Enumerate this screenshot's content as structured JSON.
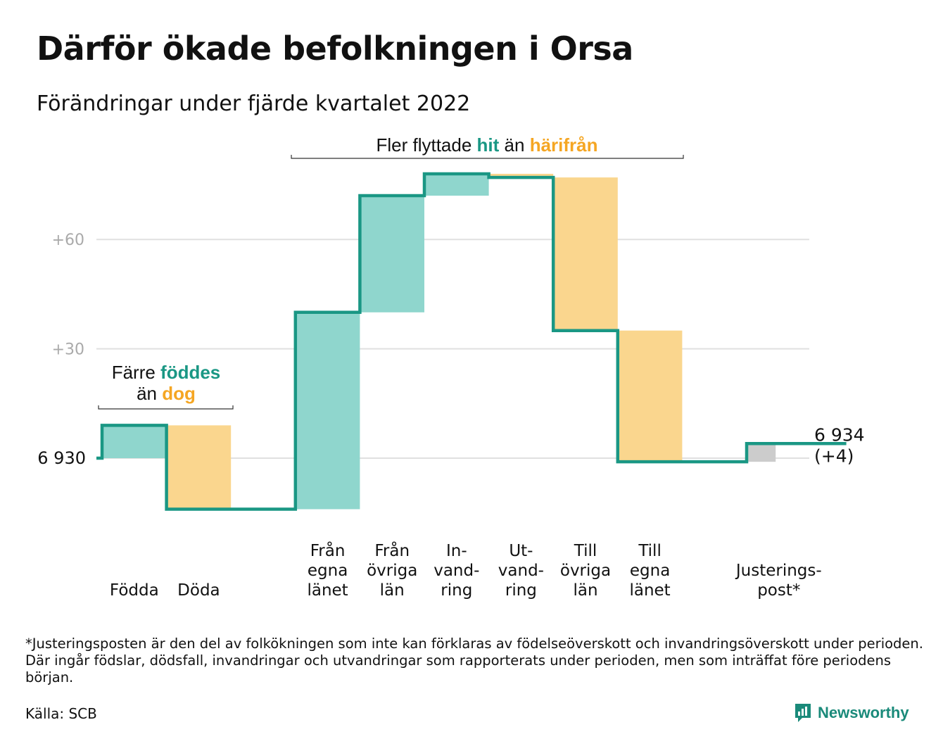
{
  "title": "Därför ökade befolkningen i Orsa",
  "subtitle": "Förändringar under fjärde kvartalet 2022",
  "footnote": "*Justeringsposten är den del av folkökningen som inte kan förklaras av födelseöverskott och invandringsöverskott under perioden. Där ingår födslar, dödsfall, invandringar och utvandringar som rapporterats under perioden, men som inträffat före periodens början.",
  "source": "Källa: SCB",
  "brand": {
    "name": "Newsworthy",
    "icon": "newsworthy-logo-icon"
  },
  "colors": {
    "increase": "#8fd6cd",
    "decrease": "#fad68e",
    "adjustment": "#cccccc",
    "line": "#1a9784",
    "accent_green": "#1a9784",
    "accent_orange": "#f5a623",
    "grid": "#e0e0e0",
    "tick_label": "#aaaaaa"
  },
  "chart_data": {
    "type": "waterfall",
    "base_value": 6930,
    "base_label": "6 930",
    "end_label": [
      "6 934",
      "(+4)"
    ],
    "y_ticks": [
      {
        "value": 30,
        "label": "+30"
      },
      {
        "value": 60,
        "label": "+60"
      }
    ],
    "ylim": [
      -18,
      82
    ],
    "grid": true,
    "steps": [
      {
        "label": [
          "Födda"
        ],
        "change": 9,
        "kind": "increase"
      },
      {
        "label": [
          "Döda"
        ],
        "change": -23,
        "kind": "decrease"
      },
      {
        "label": [],
        "change": 0,
        "kind": "gap"
      },
      {
        "label": [
          "Från",
          "egna",
          "länet"
        ],
        "change": 54,
        "kind": "increase"
      },
      {
        "label": [
          "Från",
          "övriga",
          "län"
        ],
        "change": 32,
        "kind": "increase"
      },
      {
        "label": [
          "In-",
          "vand-",
          "ring"
        ],
        "change": 6,
        "kind": "increase"
      },
      {
        "label": [
          "Ut-",
          "vand-",
          "ring"
        ],
        "change": -1,
        "kind": "decrease"
      },
      {
        "label": [
          "Till",
          "övriga",
          "län"
        ],
        "change": -42,
        "kind": "decrease"
      },
      {
        "label": [
          "Till",
          "egna",
          "länet"
        ],
        "change": -36,
        "kind": "decrease"
      },
      {
        "label": [],
        "change": 0,
        "kind": "gap"
      },
      {
        "label": [
          "Justerings-",
          "post*"
        ],
        "change": 5,
        "kind": "adjustment"
      }
    ],
    "annotations": [
      {
        "name": "births-deaths",
        "parts": [
          [
            {
              "text": "Färre ",
              "style": "plain"
            },
            {
              "text": "föddes",
              "style": "green"
            }
          ],
          [
            {
              "text": "än ",
              "style": "plain"
            },
            {
              "text": "dog",
              "style": "orange"
            }
          ]
        ]
      },
      {
        "name": "migration",
        "parts": [
          [
            {
              "text": "Fler flyttade ",
              "style": "plain"
            },
            {
              "text": "hit",
              "style": "green"
            },
            {
              "text": " än ",
              "style": "plain"
            },
            {
              "text": "härifrån",
              "style": "orange"
            }
          ]
        ]
      }
    ]
  }
}
